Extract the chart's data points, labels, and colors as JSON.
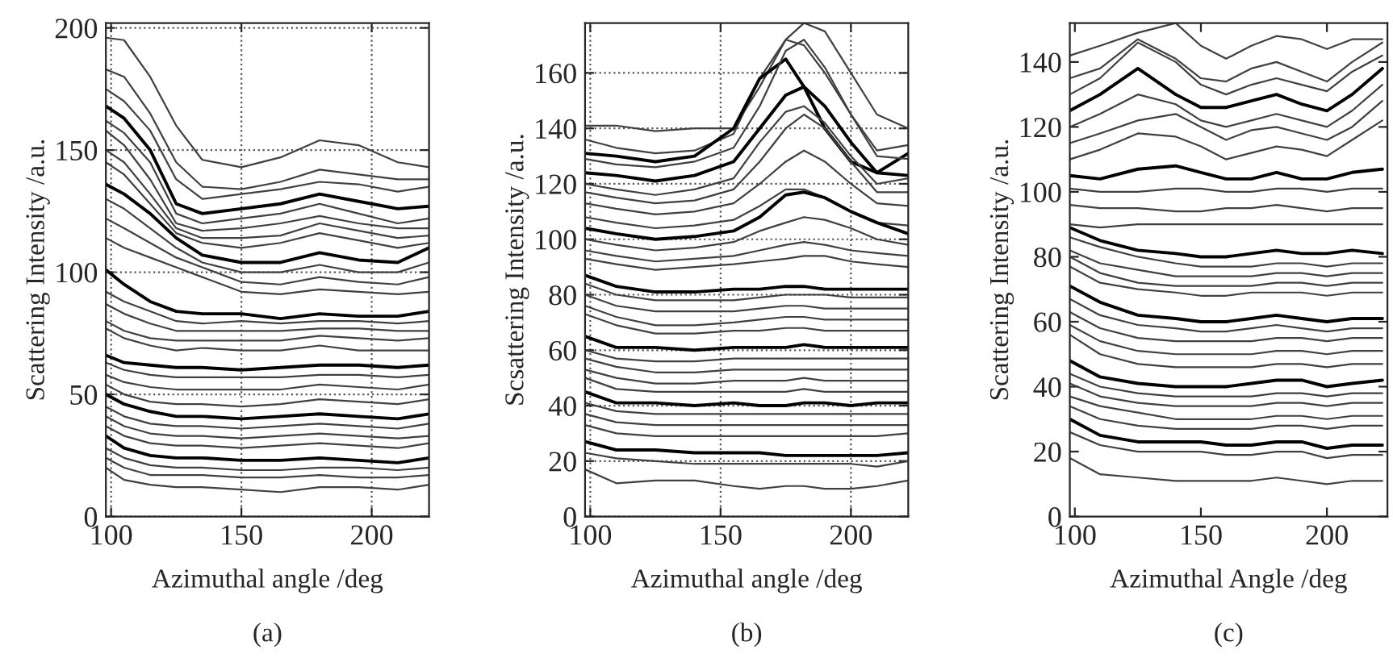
{
  "chart_data": [
    {
      "type": "line",
      "xlabel": "Azimuthal angle /deg",
      "ylabel": "Scattering Intensity /a.u.",
      "annotations": [
        "(a)"
      ],
      "xlim": [
        98,
        222
      ],
      "ylim": [
        0,
        202
      ],
      "xticks": [
        100,
        150,
        200
      ],
      "yticks": [
        0,
        50,
        100,
        150,
        200
      ],
      "grid": true,
      "line_style": "solid",
      "x": [
        98,
        105,
        115,
        125,
        135,
        150,
        165,
        180,
        195,
        210,
        222
      ],
      "series": [
        {
          "color": "#404040",
          "values": [
            196,
            195,
            180,
            160,
            146,
            143,
            147,
            154,
            152,
            145,
            143
          ]
        },
        {
          "color": "#404040",
          "values": [
            183,
            180,
            165,
            145,
            135,
            134,
            137,
            142,
            140,
            138,
            138
          ]
        },
        {
          "color": "#404040",
          "values": [
            175,
            170,
            158,
            138,
            130,
            132,
            134,
            137,
            136,
            133,
            135
          ]
        },
        {
          "color": "#000000",
          "values": [
            168,
            163,
            150,
            128,
            124,
            126,
            128,
            132,
            129,
            126,
            127
          ]
        },
        {
          "color": "#404040",
          "values": [
            162,
            157,
            145,
            124,
            120,
            122,
            124,
            128,
            124,
            120,
            122
          ]
        },
        {
          "color": "#404040",
          "values": [
            158,
            152,
            138,
            120,
            117,
            118,
            120,
            123,
            120,
            118,
            118
          ]
        },
        {
          "color": "#404040",
          "values": [
            150,
            145,
            132,
            118,
            114,
            114,
            115,
            120,
            117,
            114,
            115
          ]
        },
        {
          "color": "#404040",
          "values": [
            145,
            140,
            128,
            116,
            112,
            110,
            112,
            116,
            113,
            110,
            112
          ]
        },
        {
          "color": "#000000",
          "values": [
            136,
            132,
            124,
            114,
            107,
            104,
            104,
            108,
            105,
            104,
            110
          ]
        },
        {
          "color": "#404040",
          "values": [
            130,
            126,
            118,
            110,
            104,
            100,
            100,
            103,
            100,
            100,
            104
          ]
        },
        {
          "color": "#404040",
          "values": [
            122,
            118,
            112,
            106,
            102,
            96,
            95,
            98,
            96,
            95,
            98
          ]
        },
        {
          "color": "#404040",
          "values": [
            114,
            110,
            106,
            102,
            98,
            92,
            91,
            93,
            92,
            91,
            92
          ]
        },
        {
          "color": "#000000",
          "values": [
            101,
            95,
            88,
            84,
            83,
            83,
            81,
            83,
            82,
            82,
            84
          ]
        },
        {
          "color": "#404040",
          "values": [
            92,
            88,
            84,
            80,
            79,
            80,
            79,
            80,
            80,
            79,
            80
          ]
        },
        {
          "color": "#404040",
          "values": [
            87,
            83,
            79,
            76,
            76,
            76,
            76,
            77,
            77,
            76,
            76
          ]
        },
        {
          "color": "#404040",
          "values": [
            80,
            76,
            73,
            72,
            72,
            72,
            72,
            74,
            73,
            72,
            73
          ]
        },
        {
          "color": "#404040",
          "values": [
            77,
            73,
            70,
            68,
            69,
            68,
            68,
            70,
            68,
            68,
            68
          ]
        },
        {
          "color": "#000000",
          "values": [
            66,
            63,
            62,
            61,
            61,
            60,
            61,
            62,
            62,
            61,
            62
          ]
        },
        {
          "color": "#404040",
          "values": [
            63,
            60,
            58,
            57,
            57,
            57,
            57,
            58,
            58,
            57,
            58
          ]
        },
        {
          "color": "#404040",
          "values": [
            58,
            55,
            53,
            52,
            52,
            52,
            52,
            54,
            53,
            52,
            54
          ]
        },
        {
          "color": "#404040",
          "values": [
            54,
            50,
            47,
            46,
            46,
            45,
            46,
            48,
            47,
            46,
            48
          ]
        },
        {
          "color": "#000000",
          "values": [
            50,
            46,
            43,
            41,
            41,
            40,
            41,
            42,
            41,
            40,
            42
          ]
        },
        {
          "color": "#404040",
          "values": [
            45,
            41,
            38,
            37,
            37,
            36,
            37,
            38,
            37,
            36,
            38
          ]
        },
        {
          "color": "#404040",
          "values": [
            41,
            37,
            34,
            33,
            33,
            32,
            33,
            34,
            33,
            32,
            33
          ]
        },
        {
          "color": "#404040",
          "values": [
            37,
            33,
            30,
            29,
            29,
            28,
            29,
            30,
            29,
            28,
            30
          ]
        },
        {
          "color": "#000000",
          "values": [
            33,
            28,
            25,
            24,
            24,
            23,
            23,
            24,
            23,
            22,
            24
          ]
        },
        {
          "color": "#404040",
          "values": [
            28,
            24,
            21,
            20,
            20,
            19,
            19,
            20,
            20,
            19,
            20
          ]
        },
        {
          "color": "#404040",
          "values": [
            24,
            20,
            17,
            17,
            17,
            16,
            16,
            17,
            16,
            16,
            17
          ]
        },
        {
          "color": "#404040",
          "values": [
            20,
            15,
            13,
            12,
            12,
            11,
            10,
            12,
            12,
            11,
            13
          ]
        }
      ]
    },
    {
      "type": "line",
      "xlabel": "Azimuthal angle /deg",
      "ylabel": "Scsattering Intensity /a.u.",
      "annotations": [
        "(b)"
      ],
      "xlim": [
        98,
        222
      ],
      "ylim": [
        0,
        178
      ],
      "xticks": [
        100,
        150,
        200
      ],
      "yticks": [
        0,
        20,
        40,
        60,
        80,
        100,
        120,
        140,
        160
      ],
      "grid": true,
      "line_style": "solid",
      "x": [
        98,
        110,
        125,
        140,
        155,
        165,
        175,
        182,
        190,
        200,
        210,
        222
      ],
      "series": [
        {
          "color": "#404040",
          "values": [
            141,
            141,
            139,
            140,
            140,
            155,
            172,
            178,
            175,
            160,
            145,
            140
          ]
        },
        {
          "color": "#404040",
          "values": [
            136,
            133,
            131,
            132,
            138,
            158,
            172,
            170,
            160,
            145,
            132,
            134
          ]
        },
        {
          "color": "#000000",
          "values": [
            131,
            130,
            128,
            130,
            140,
            158,
            165,
            155,
            140,
            128,
            124,
            131
          ]
        },
        {
          "color": "#404040",
          "values": [
            129,
            127,
            126,
            128,
            133,
            148,
            168,
            172,
            162,
            145,
            130,
            129
          ]
        },
        {
          "color": "#000000",
          "values": [
            124,
            123,
            121,
            123,
            128,
            140,
            152,
            155,
            148,
            135,
            124,
            123
          ]
        },
        {
          "color": "#404040",
          "values": [
            120,
            118,
            116,
            118,
            122,
            135,
            146,
            148,
            142,
            130,
            120,
            122
          ]
        },
        {
          "color": "#404040",
          "values": [
            117,
            115,
            113,
            114,
            118,
            128,
            140,
            145,
            140,
            128,
            117,
            117
          ]
        },
        {
          "color": "#404040",
          "values": [
            113,
            111,
            109,
            110,
            113,
            120,
            128,
            132,
            128,
            120,
            113,
            112
          ]
        },
        {
          "color": "#404040",
          "values": [
            108,
            106,
            104,
            105,
            107,
            112,
            118,
            118,
            115,
            110,
            106,
            105
          ]
        },
        {
          "color": "#000000",
          "values": [
            104,
            102,
            100,
            101,
            103,
            108,
            116,
            117,
            115,
            110,
            106,
            102
          ]
        },
        {
          "color": "#404040",
          "values": [
            100,
            98,
            96,
            97,
            99,
            103,
            106,
            108,
            107,
            104,
            100,
            98
          ]
        },
        {
          "color": "#404040",
          "values": [
            96,
            94,
            92,
            93,
            94,
            96,
            98,
            99,
            98,
            96,
            95,
            94
          ]
        },
        {
          "color": "#404040",
          "values": [
            93,
            91,
            89,
            90,
            91,
            92,
            93,
            94,
            94,
            92,
            91,
            90
          ]
        },
        {
          "color": "#000000",
          "values": [
            87,
            83,
            81,
            81,
            82,
            82,
            83,
            83,
            82,
            82,
            82,
            82
          ]
        },
        {
          "color": "#404040",
          "values": [
            84,
            80,
            78,
            78,
            78,
            79,
            80,
            80,
            80,
            79,
            79,
            79
          ]
        },
        {
          "color": "#404040",
          "values": [
            80,
            76,
            74,
            74,
            74,
            75,
            76,
            76,
            75,
            75,
            75,
            75
          ]
        },
        {
          "color": "#404040",
          "values": [
            76,
            72,
            69,
            69,
            70,
            71,
            72,
            72,
            71,
            71,
            71,
            71
          ]
        },
        {
          "color": "#404040",
          "values": [
            73,
            69,
            66,
            66,
            67,
            67,
            68,
            68,
            67,
            67,
            67,
            67
          ]
        },
        {
          "color": "#000000",
          "values": [
            65,
            61,
            61,
            60,
            61,
            61,
            61,
            62,
            61,
            61,
            61,
            61
          ]
        },
        {
          "color": "#404040",
          "values": [
            60,
            57,
            56,
            56,
            57,
            57,
            57,
            57,
            57,
            57,
            57,
            57
          ]
        },
        {
          "color": "#404040",
          "values": [
            57,
            54,
            52,
            52,
            53,
            53,
            53,
            53,
            53,
            53,
            53,
            53
          ]
        },
        {
          "color": "#404040",
          "values": [
            53,
            50,
            48,
            48,
            49,
            49,
            49,
            50,
            49,
            49,
            49,
            49
          ]
        },
        {
          "color": "#404040",
          "values": [
            50,
            46,
            45,
            45,
            45,
            45,
            45,
            46,
            45,
            45,
            45,
            45
          ]
        },
        {
          "color": "#000000",
          "values": [
            45,
            41,
            41,
            40,
            41,
            40,
            40,
            41,
            41,
            40,
            41,
            41
          ]
        },
        {
          "color": "#404040",
          "values": [
            41,
            38,
            37,
            37,
            37,
            37,
            37,
            37,
            37,
            37,
            37,
            37
          ]
        },
        {
          "color": "#404040",
          "values": [
            37,
            34,
            33,
            33,
            33,
            33,
            33,
            33,
            33,
            33,
            33,
            33
          ]
        },
        {
          "color": "#404040",
          "values": [
            33,
            30,
            29,
            29,
            29,
            29,
            29,
            29,
            29,
            29,
            29,
            30
          ]
        },
        {
          "color": "#000000",
          "values": [
            27,
            24,
            24,
            23,
            23,
            23,
            22,
            22,
            22,
            22,
            22,
            23
          ]
        },
        {
          "color": "#404040",
          "values": [
            23,
            21,
            20,
            19,
            19,
            19,
            19,
            19,
            19,
            19,
            18,
            20
          ]
        },
        {
          "color": "#404040",
          "values": [
            17,
            12,
            13,
            13,
            11,
            10,
            11,
            11,
            10,
            10,
            11,
            13
          ]
        }
      ]
    },
    {
      "type": "line",
      "xlabel": "Azimuthal Angle /deg",
      "ylabel": "Scattering Intensity /a.u.",
      "annotations": [
        "(c)"
      ],
      "xlim": [
        98,
        224
      ],
      "ylim": [
        0,
        152
      ],
      "xticks": [
        100,
        150,
        200
      ],
      "yticks": [
        0,
        20,
        40,
        60,
        80,
        100,
        120,
        140
      ],
      "line_style": "solid",
      "x": [
        98,
        110,
        125,
        140,
        150,
        160,
        170,
        180,
        190,
        200,
        210,
        222
      ],
      "series": [
        {
          "color": "#404040",
          "values": [
            142,
            145,
            149,
            152,
            145,
            141,
            145,
            148,
            147,
            144,
            147,
            147
          ]
        },
        {
          "color": "#404040",
          "values": [
            135,
            138,
            147,
            141,
            135,
            134,
            138,
            140,
            137,
            134,
            140,
            146
          ]
        },
        {
          "color": "#404040",
          "values": [
            130,
            135,
            146,
            140,
            133,
            130,
            133,
            135,
            133,
            131,
            137,
            142
          ]
        },
        {
          "color": "#000000",
          "values": [
            125,
            130,
            138,
            130,
            126,
            126,
            128,
            130,
            127,
            125,
            130,
            138
          ]
        },
        {
          "color": "#404040",
          "values": [
            120,
            124,
            130,
            127,
            122,
            120,
            122,
            124,
            122,
            120,
            125,
            133
          ]
        },
        {
          "color": "#404040",
          "values": [
            115,
            118,
            122,
            124,
            120,
            116,
            119,
            120,
            118,
            116,
            120,
            128
          ]
        },
        {
          "color": "#404040",
          "values": [
            110,
            113,
            118,
            117,
            114,
            110,
            112,
            114,
            113,
            111,
            116,
            122
          ]
        },
        {
          "color": "#000000",
          "values": [
            105,
            104,
            107,
            108,
            106,
            104,
            104,
            106,
            104,
            104,
            106,
            107
          ]
        },
        {
          "color": "#404040",
          "values": [
            101,
            100,
            100,
            101,
            101,
            100,
            100,
            101,
            101,
            100,
            101,
            101
          ]
        },
        {
          "color": "#404040",
          "values": [
            96,
            95,
            95,
            94,
            94,
            95,
            95,
            96,
            95,
            94,
            95,
            95
          ]
        },
        {
          "color": "#404040",
          "values": [
            90,
            89,
            90,
            90,
            90,
            90,
            90,
            90,
            90,
            90,
            90,
            90
          ]
        },
        {
          "color": "#000000",
          "values": [
            89,
            85,
            82,
            81,
            80,
            80,
            81,
            82,
            81,
            81,
            82,
            81
          ]
        },
        {
          "color": "#404040",
          "values": [
            86,
            83,
            80,
            78,
            77,
            77,
            77,
            78,
            78,
            77,
            78,
            78
          ]
        },
        {
          "color": "#404040",
          "values": [
            82,
            78,
            76,
            74,
            74,
            74,
            74,
            75,
            75,
            74,
            75,
            75
          ]
        },
        {
          "color": "#404040",
          "values": [
            80,
            75,
            72,
            71,
            71,
            71,
            71,
            72,
            72,
            71,
            72,
            72
          ]
        },
        {
          "color": "#404040",
          "values": [
            77,
            72,
            70,
            69,
            68,
            68,
            69,
            69,
            69,
            68,
            69,
            69
          ]
        },
        {
          "color": "#000000",
          "values": [
            71,
            66,
            62,
            61,
            60,
            60,
            61,
            62,
            61,
            60,
            61,
            61
          ]
        },
        {
          "color": "#404040",
          "values": [
            67,
            62,
            59,
            58,
            57,
            57,
            58,
            59,
            58,
            57,
            58,
            58
          ]
        },
        {
          "color": "#404040",
          "values": [
            63,
            58,
            55,
            54,
            54,
            54,
            54,
            55,
            55,
            54,
            55,
            55
          ]
        },
        {
          "color": "#404040",
          "values": [
            59,
            54,
            51,
            50,
            50,
            50,
            50,
            51,
            51,
            50,
            51,
            51
          ]
        },
        {
          "color": "#404040",
          "values": [
            56,
            50,
            47,
            46,
            46,
            46,
            46,
            47,
            47,
            46,
            47,
            47
          ]
        },
        {
          "color": "#000000",
          "values": [
            48,
            43,
            41,
            40,
            40,
            40,
            41,
            42,
            42,
            40,
            41,
            42
          ]
        },
        {
          "color": "#404040",
          "values": [
            44,
            40,
            38,
            37,
            37,
            37,
            37,
            38,
            38,
            37,
            38,
            38
          ]
        },
        {
          "color": "#404040",
          "values": [
            41,
            37,
            35,
            34,
            34,
            34,
            34,
            35,
            35,
            34,
            35,
            35
          ]
        },
        {
          "color": "#404040",
          "values": [
            37,
            34,
            32,
            30,
            30,
            30,
            30,
            31,
            31,
            30,
            31,
            31
          ]
        },
        {
          "color": "#404040",
          "values": [
            34,
            30,
            28,
            27,
            27,
            27,
            27,
            28,
            28,
            27,
            28,
            28
          ]
        },
        {
          "color": "#000000",
          "values": [
            30,
            25,
            23,
            23,
            23,
            22,
            22,
            23,
            23,
            21,
            22,
            22
          ]
        },
        {
          "color": "#404040",
          "values": [
            26,
            22,
            20,
            20,
            20,
            19,
            19,
            20,
            20,
            18,
            19,
            19
          ]
        },
        {
          "color": "#404040",
          "values": [
            18,
            13,
            12,
            11,
            11,
            11,
            11,
            12,
            11,
            10,
            11,
            11
          ]
        }
      ]
    }
  ]
}
